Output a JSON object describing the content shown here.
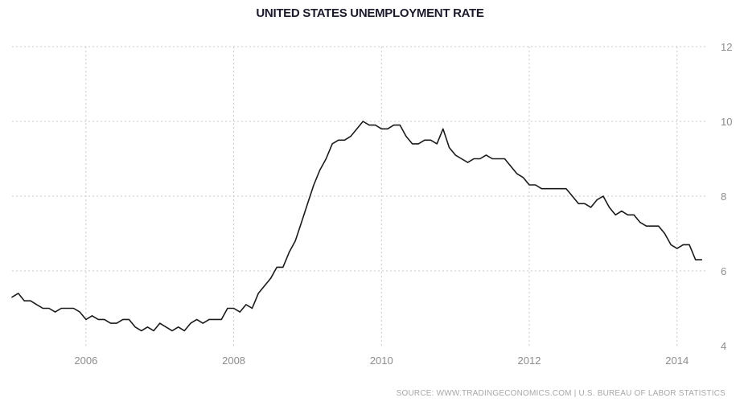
{
  "chart_data": {
    "type": "line",
    "title": "UNITED STATES UNEMPLOYMENT RATE",
    "source": "SOURCE: WWW.TRADINGECONOMICS.COM | U.S. BUREAU OF LABOR STATISTICS",
    "xlabel": "",
    "ylabel": "",
    "x_ticks": [
      "2006",
      "2008",
      "2010",
      "2012",
      "2014"
    ],
    "y_ticks": [
      "4",
      "6",
      "8",
      "10",
      "12"
    ],
    "xlim": [
      "2005-01",
      "2014-06"
    ],
    "ylim": [
      4,
      12
    ],
    "grid": true,
    "y_axis_side": "right",
    "line_color": "#1a1a1a",
    "grid_color": "#c8c8c8",
    "series": [
      {
        "x": [
          "2005-01",
          "2005-02",
          "2005-03",
          "2005-04",
          "2005-05",
          "2005-06",
          "2005-07",
          "2005-08",
          "2005-09",
          "2005-10",
          "2005-11",
          "2005-12",
          "2006-01",
          "2006-02",
          "2006-03",
          "2006-04",
          "2006-05",
          "2006-06",
          "2006-07",
          "2006-08",
          "2006-09",
          "2006-10",
          "2006-11",
          "2006-12",
          "2007-01",
          "2007-02",
          "2007-03",
          "2007-04",
          "2007-05",
          "2007-06",
          "2007-07",
          "2007-08",
          "2007-09",
          "2007-10",
          "2007-11",
          "2007-12",
          "2008-01",
          "2008-02",
          "2008-03",
          "2008-04",
          "2008-05",
          "2008-06",
          "2008-07",
          "2008-08",
          "2008-09",
          "2008-10",
          "2008-11",
          "2008-12",
          "2009-01",
          "2009-02",
          "2009-03",
          "2009-04",
          "2009-05",
          "2009-06",
          "2009-07",
          "2009-08",
          "2009-09",
          "2009-10",
          "2009-11",
          "2009-12",
          "2010-01",
          "2010-02",
          "2010-03",
          "2010-04",
          "2010-05",
          "2010-06",
          "2010-07",
          "2010-08",
          "2010-09",
          "2010-10",
          "2010-11",
          "2010-12",
          "2011-01",
          "2011-02",
          "2011-03",
          "2011-04",
          "2011-05",
          "2011-06",
          "2011-07",
          "2011-08",
          "2011-09",
          "2011-10",
          "2011-11",
          "2011-12",
          "2012-01",
          "2012-02",
          "2012-03",
          "2012-04",
          "2012-05",
          "2012-06",
          "2012-07",
          "2012-08",
          "2012-09",
          "2012-10",
          "2012-11",
          "2012-12",
          "2013-01",
          "2013-02",
          "2013-03",
          "2013-04",
          "2013-05",
          "2013-06",
          "2013-07",
          "2013-08",
          "2013-09",
          "2013-10",
          "2013-11",
          "2013-12",
          "2014-01",
          "2014-02",
          "2014-03",
          "2014-04",
          "2014-05"
        ],
        "values": [
          5.3,
          5.4,
          5.2,
          5.2,
          5.1,
          5.0,
          5.0,
          4.9,
          5.0,
          5.0,
          5.0,
          4.9,
          4.7,
          4.8,
          4.7,
          4.7,
          4.6,
          4.6,
          4.7,
          4.7,
          4.5,
          4.4,
          4.5,
          4.4,
          4.6,
          4.5,
          4.4,
          4.5,
          4.4,
          4.6,
          4.7,
          4.6,
          4.7,
          4.7,
          4.7,
          5.0,
          5.0,
          4.9,
          5.1,
          5.0,
          5.4,
          5.6,
          5.8,
          6.1,
          6.1,
          6.5,
          6.8,
          7.3,
          7.8,
          8.3,
          8.7,
          9.0,
          9.4,
          9.5,
          9.5,
          9.6,
          9.8,
          10.0,
          9.9,
          9.9,
          9.8,
          9.8,
          9.9,
          9.9,
          9.6,
          9.4,
          9.4,
          9.5,
          9.5,
          9.4,
          9.8,
          9.3,
          9.1,
          9.0,
          8.9,
          9.0,
          9.0,
          9.1,
          9.0,
          9.0,
          9.0,
          8.8,
          8.6,
          8.5,
          8.3,
          8.3,
          8.2,
          8.2,
          8.2,
          8.2,
          8.2,
          8.0,
          7.8,
          7.8,
          7.7,
          7.9,
          8.0,
          7.7,
          7.5,
          7.6,
          7.5,
          7.5,
          7.3,
          7.2,
          7.2,
          7.2,
          7.0,
          6.7,
          6.6,
          6.7,
          6.7,
          6.3,
          6.3
        ]
      }
    ]
  }
}
